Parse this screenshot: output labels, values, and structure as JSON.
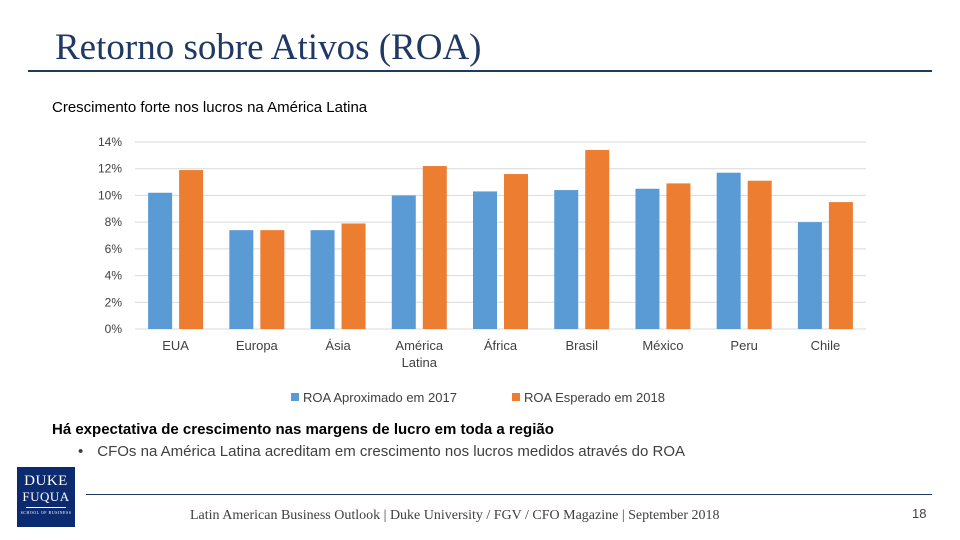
{
  "slide": {
    "title": "Retorno sobre Ativos (ROA)",
    "subtitle": "Crescimento forte nos lucros na América Latina",
    "highlight": "Há expectativa de crescimento nas margens de lucro em toda a região",
    "bullet_marker": "•",
    "bullet": "CFOs na América Latina acreditam em crescimento nos lucros medidos através do ROA",
    "footer": "Latin American Business Outlook | Duke University / FGV / CFO Magazine | September 2018",
    "page_number": "18"
  },
  "logo": {
    "line1": "DUKE",
    "line2": "FUQUA",
    "line3": "SCHOOL OF BUSINESS",
    "bg_color": "#0b2a6f"
  },
  "chart_data": {
    "type": "bar",
    "title": "",
    "xlabel": "",
    "ylabel": "",
    "ylim": [
      0,
      14
    ],
    "yticks": [
      0,
      2,
      4,
      6,
      8,
      10,
      12,
      14
    ],
    "ytick_labels": [
      "0%",
      "2%",
      "4%",
      "6%",
      "8%",
      "10%",
      "12%",
      "14%"
    ],
    "grid": true,
    "legend_position": "bottom",
    "categories": [
      "EUA",
      "Europa",
      "Ásia",
      "América Latina",
      "África",
      "Brasil",
      "México",
      "Peru",
      "Chile"
    ],
    "category_labels": [
      [
        "EUA"
      ],
      [
        "Europa"
      ],
      [
        "Ásia"
      ],
      [
        "América",
        "Latina"
      ],
      [
        "África"
      ],
      [
        "Brasil"
      ],
      [
        "México"
      ],
      [
        "Peru"
      ],
      [
        "Chile"
      ]
    ],
    "series": [
      {
        "name": "ROA Aproximado em 2017",
        "color": "#5b9bd5",
        "values": [
          10.2,
          7.4,
          7.4,
          10.0,
          10.3,
          10.4,
          10.5,
          11.7,
          8.0
        ]
      },
      {
        "name": "ROA Esperado em 2018",
        "color": "#ed7d31",
        "values": [
          11.9,
          7.4,
          7.9,
          12.2,
          11.6,
          13.4,
          10.9,
          11.1,
          9.5
        ]
      }
    ]
  }
}
